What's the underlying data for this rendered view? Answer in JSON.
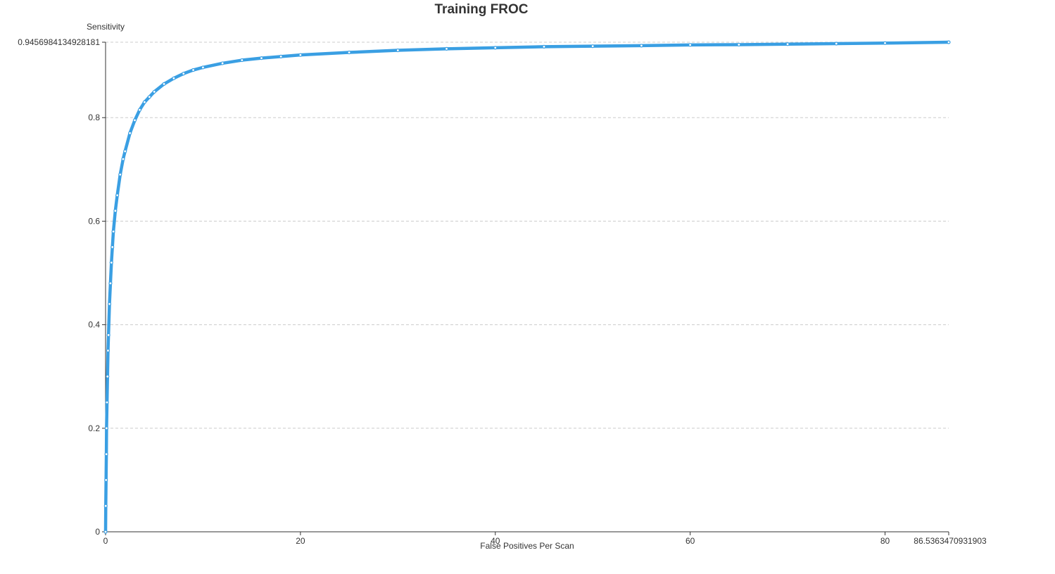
{
  "chart_data": {
    "type": "line",
    "title": "Training FROC",
    "xlabel": "False Positives Per Scan",
    "ylabel": "Sensitivity",
    "xlim": [
      0,
      86.5363470931903
    ],
    "ylim": [
      0,
      0.9456984134928181
    ],
    "x_ticks": [
      0,
      20,
      40,
      60,
      80
    ],
    "x_max_label": "86.5363470931903",
    "y_ticks": [
      0,
      0.2,
      0.4,
      0.6,
      0.8
    ],
    "y_max_label": "0.9456984134928181",
    "grid": "horizontal dashed",
    "series_color": "#3a9fe3",
    "series": [
      {
        "x": [
          0,
          0.02,
          0.05,
          0.08,
          0.1,
          0.15,
          0.2,
          0.25,
          0.3,
          0.4,
          0.5,
          0.6,
          0.7,
          0.8,
          1.0,
          1.2,
          1.5,
          1.8,
          2.0,
          2.5,
          3.0,
          3.5,
          4.0,
          4.5,
          5.0,
          6.0,
          7.0,
          8.0,
          9.0,
          10,
          12,
          14,
          16,
          18,
          20,
          25,
          30,
          35,
          40,
          45,
          50,
          55,
          60,
          65,
          70,
          75,
          80,
          86.5363470931903
        ],
        "y": [
          0,
          0.05,
          0.1,
          0.15,
          0.2,
          0.25,
          0.3,
          0.35,
          0.38,
          0.44,
          0.48,
          0.52,
          0.55,
          0.58,
          0.62,
          0.65,
          0.69,
          0.72,
          0.735,
          0.77,
          0.795,
          0.815,
          0.83,
          0.84,
          0.85,
          0.865,
          0.876,
          0.885,
          0.892,
          0.897,
          0.905,
          0.911,
          0.915,
          0.918,
          0.921,
          0.926,
          0.93,
          0.933,
          0.935,
          0.937,
          0.938,
          0.939,
          0.9405,
          0.941,
          0.942,
          0.943,
          0.944,
          0.9456984134928181
        ]
      }
    ]
  }
}
